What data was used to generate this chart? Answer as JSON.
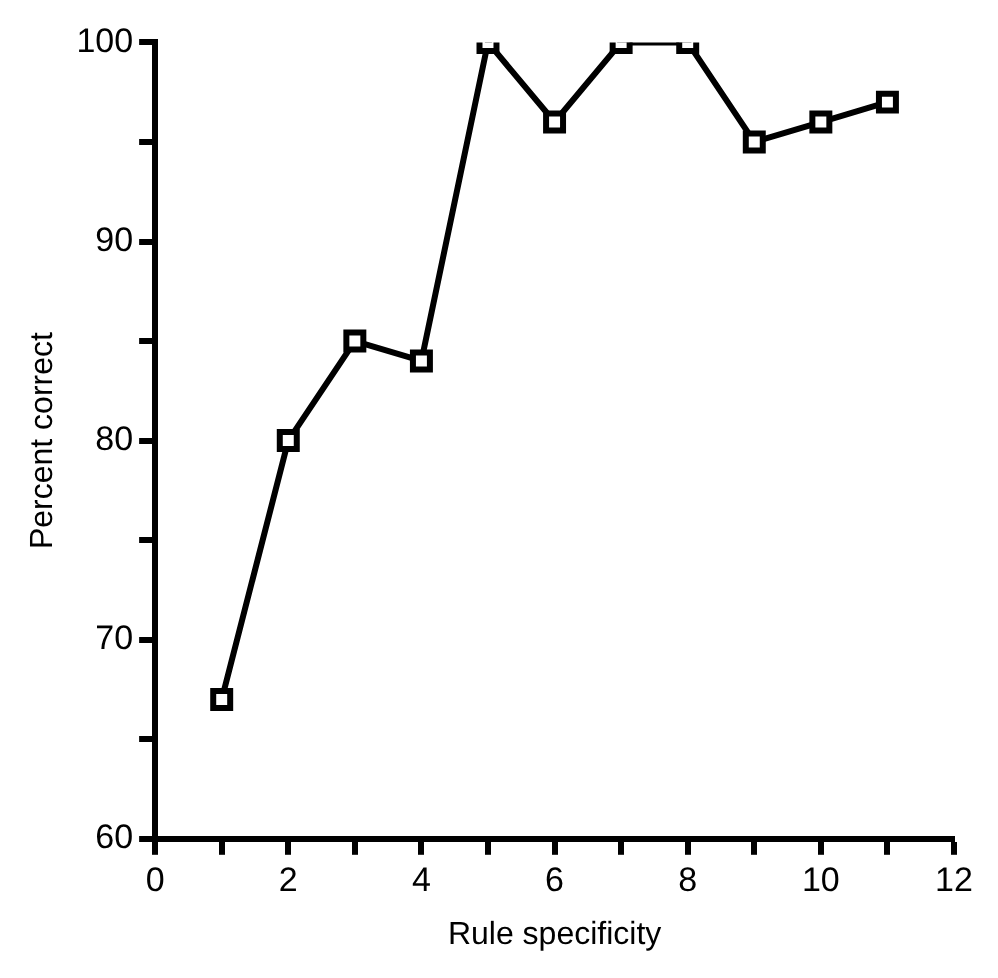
{
  "chart_data": {
    "type": "line",
    "xlabel": "Rule specificity",
    "ylabel": "Percent correct",
    "x": [
      1,
      2,
      3,
      4,
      5,
      6,
      7,
      8,
      9,
      10,
      11
    ],
    "series": [
      {
        "color": "#000000",
        "values": [
          67,
          80,
          85,
          84,
          100,
          96,
          100,
          100,
          95,
          96,
          97
        ]
      }
    ],
    "xlim": [
      0,
      12
    ],
    "xticks": [
      0,
      {
        "value": 1,
        "label": null
      },
      2,
      {
        "value": 3,
        "label": null
      },
      4,
      {
        "value": 5,
        "label": null
      },
      6,
      {
        "value": 7,
        "label": null
      },
      8,
      {
        "value": 9,
        "label": null
      },
      10,
      {
        "value": 11,
        "label": null
      },
      12
    ],
    "ylim": [
      60,
      100
    ],
    "yticks": [
      60,
      {
        "value": 65,
        "label": null
      },
      70,
      {
        "value": 75,
        "label": null
      },
      80,
      {
        "value": 85,
        "label": null
      },
      90,
      {
        "value": 95,
        "label": null
      },
      100
    ],
    "grid": false,
    "legend": false,
    "marker": "square",
    "line_style": "solid"
  }
}
